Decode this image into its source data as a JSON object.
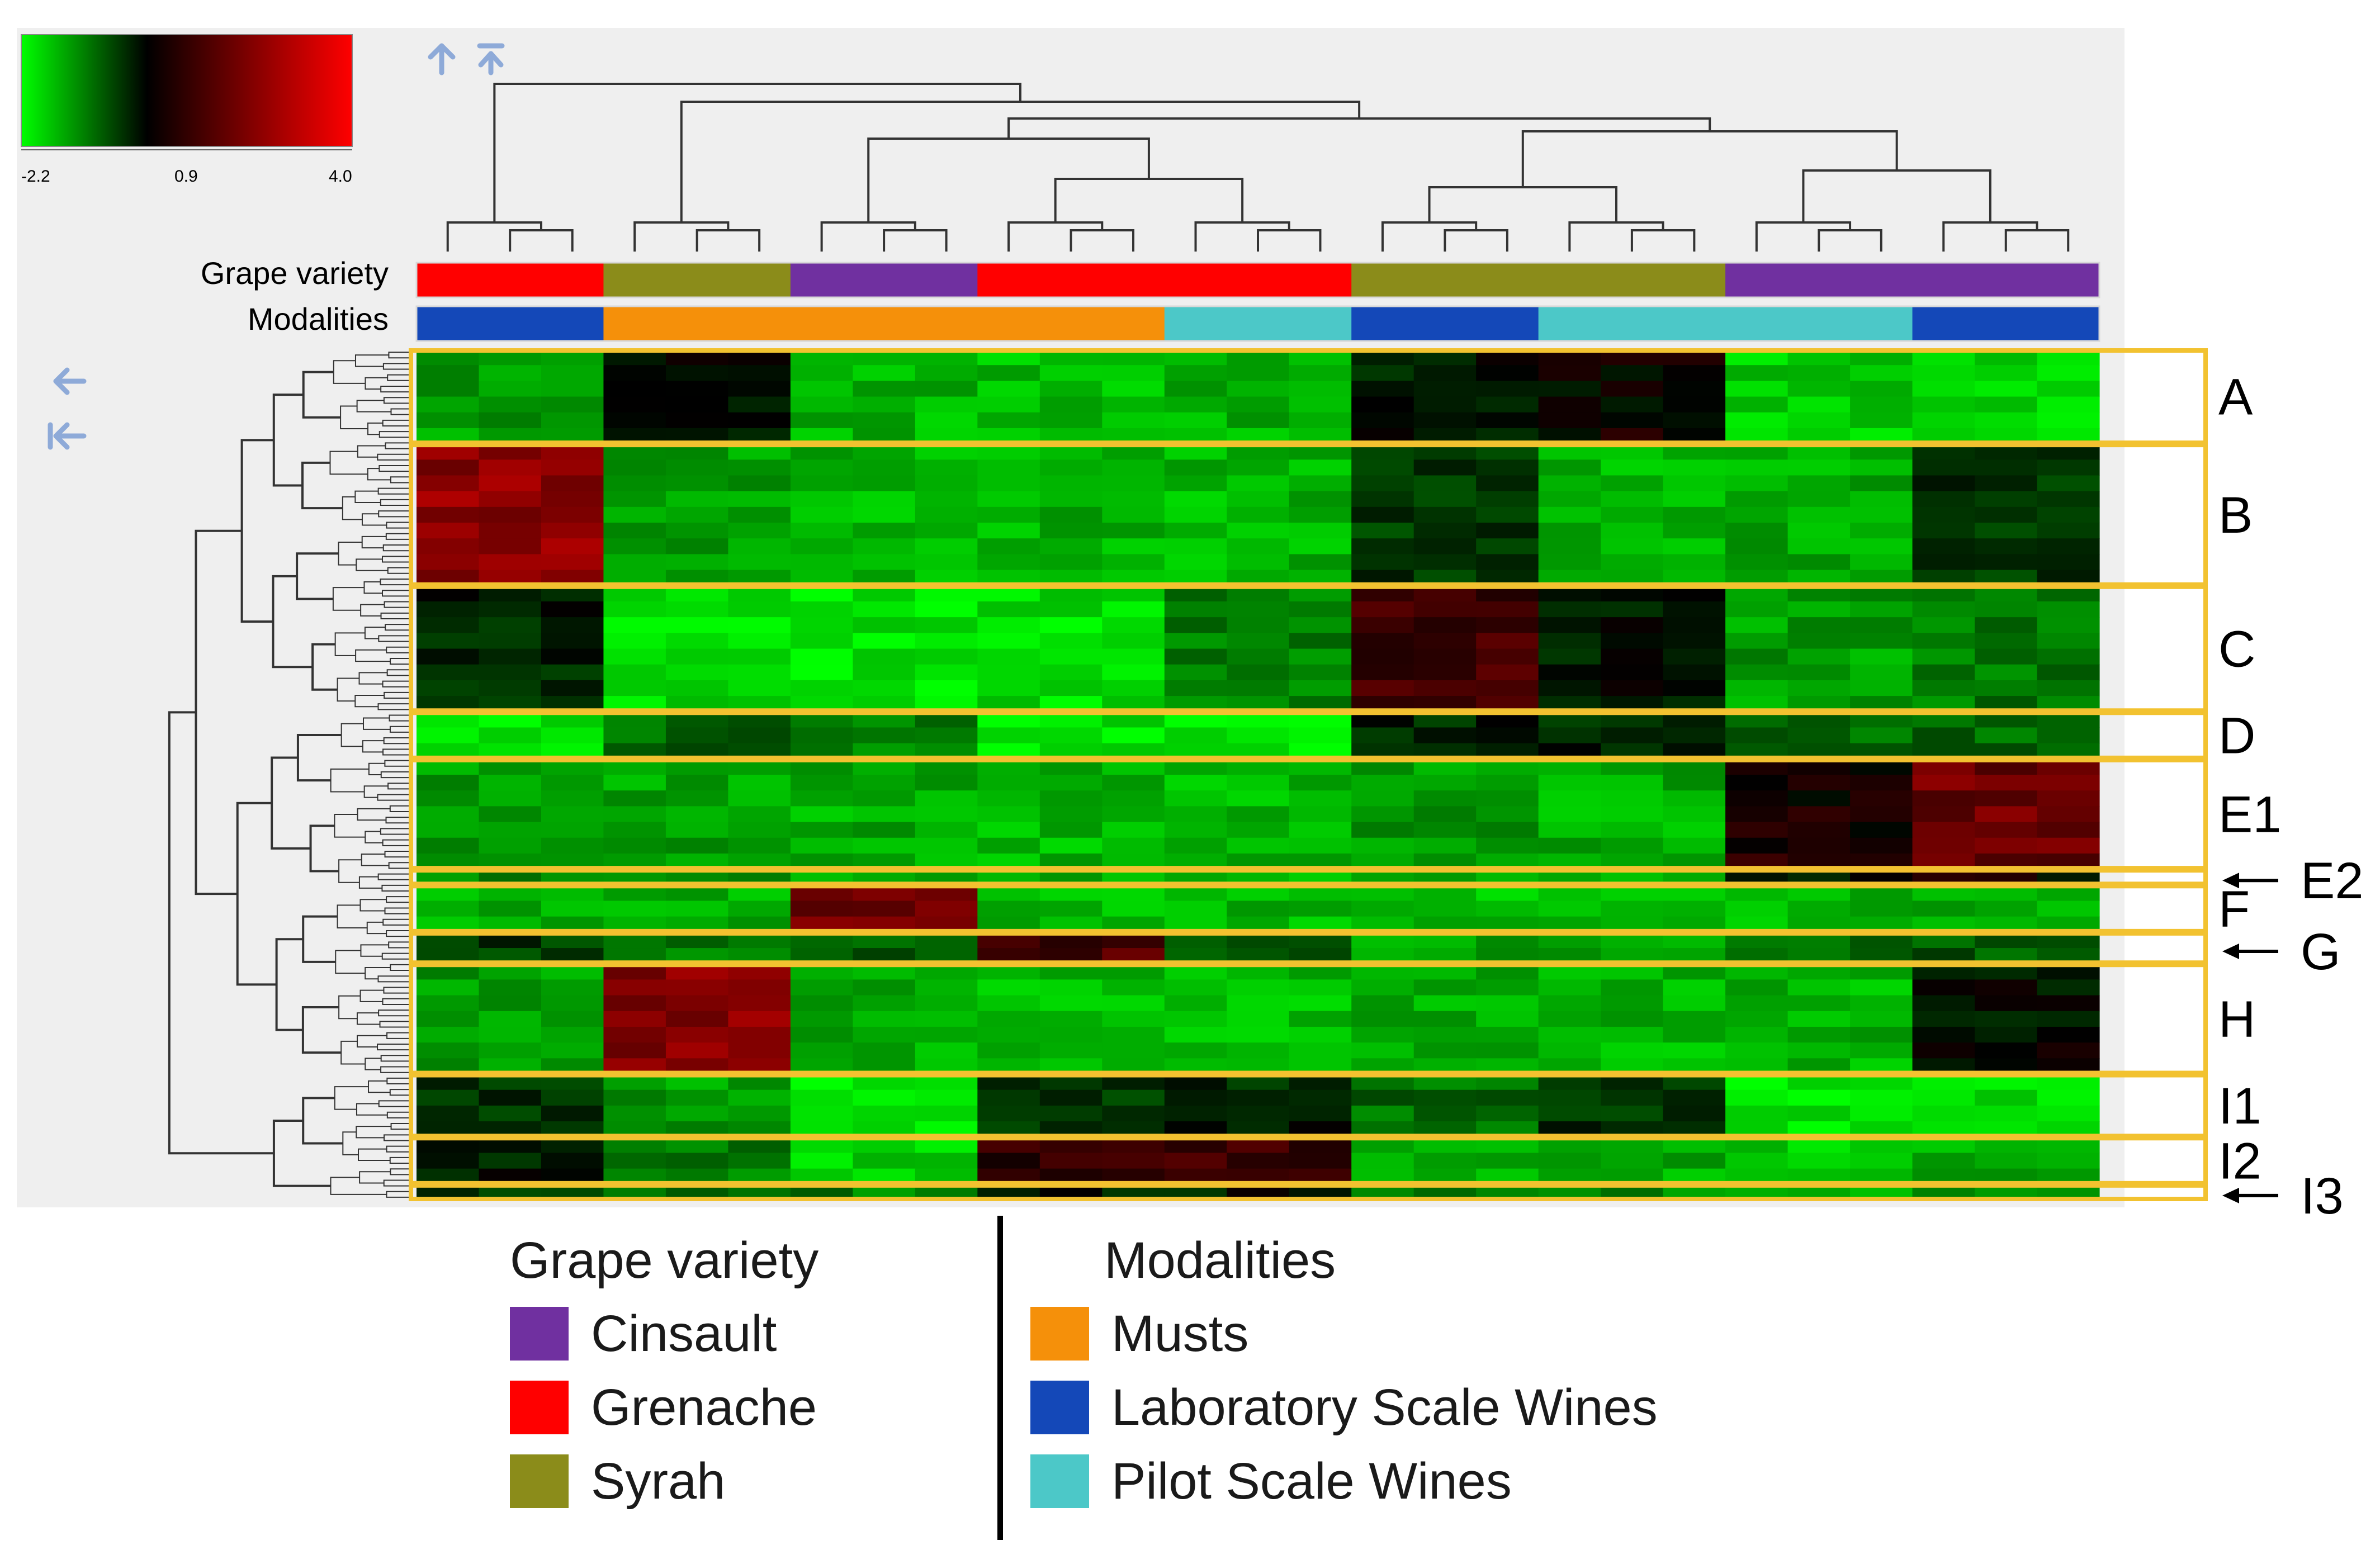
{
  "chart_data": {
    "type": "heatmap",
    "color_scale": {
      "min": -2.2,
      "mid": 0.9,
      "max": 4.0,
      "tick_labels": [
        "-2.2",
        "0.9",
        "4.0"
      ],
      "colors": [
        "#00ff00",
        "#000000",
        "#ff0000"
      ]
    },
    "annotation_rows": [
      {
        "name": "Grape variety",
        "segments": [
          {
            "value": "Grenache",
            "count": 3
          },
          {
            "value": "Syrah",
            "count": 3
          },
          {
            "value": "Cinsault",
            "count": 3
          },
          {
            "value": "Grenache",
            "count": 6
          },
          {
            "value": "Syrah",
            "count": 6
          },
          {
            "value": "Cinsault",
            "count": 6
          }
        ]
      },
      {
        "name": "Modalities",
        "segments": [
          {
            "value": "Laboratory Scale Wines",
            "count": 3
          },
          {
            "value": "Musts",
            "count": 9
          },
          {
            "value": "Pilot Scale Wines",
            "count": 3
          },
          {
            "value": "Laboratory Scale Wines",
            "count": 3
          },
          {
            "value": "Pilot Scale Wines",
            "count": 6
          },
          {
            "value": "Laboratory Scale Wines",
            "count": 3
          }
        ]
      }
    ],
    "column_groups": [
      {
        "variety": "Grenache",
        "modality": "Laboratory Scale Wines",
        "replicates": 3
      },
      {
        "variety": "Syrah",
        "modality": "Musts",
        "replicates": 3
      },
      {
        "variety": "Cinsault",
        "modality": "Musts",
        "replicates": 3
      },
      {
        "variety": "Grenache",
        "modality": "Musts",
        "replicates": 3
      },
      {
        "variety": "Grenache",
        "modality": "Pilot Scale Wines",
        "replicates": 3
      },
      {
        "variety": "Syrah",
        "modality": "Laboratory Scale Wines",
        "replicates": 3
      },
      {
        "variety": "Syrah",
        "modality": "Pilot Scale Wines",
        "replicates": 3
      },
      {
        "variety": "Cinsault",
        "modality": "Pilot Scale Wines",
        "replicates": 3
      },
      {
        "variety": "Cinsault",
        "modality": "Laboratory Scale Wines",
        "replicates": 3
      }
    ],
    "clusters": [
      {
        "label": "A",
        "rows": 6,
        "values": [
          -1.0,
          0.8,
          -1.3,
          -1.4,
          -1.3,
          0.6,
          1.0,
          -1.6,
          -1.6
        ]
      },
      {
        "label": "B",
        "rows": 9,
        "values": [
          2.6,
          -1.1,
          -1.3,
          -1.3,
          -1.3,
          0.2,
          -1.3,
          -1.2,
          0.3
        ]
      },
      {
        "label": "C",
        "rows": 8,
        "values": [
          0.5,
          -1.8,
          -1.9,
          -1.8,
          -0.6,
          1.6,
          0.6,
          -1.0,
          -0.6
        ]
      },
      {
        "label": "D",
        "rows": 3,
        "values": [
          -1.9,
          -0.3,
          -0.6,
          -1.9,
          -1.9,
          0.5,
          0.5,
          -0.4,
          -0.4
        ]
      },
      {
        "label": "E1",
        "rows": 7,
        "values": [
          -1.0,
          -1.1,
          -1.2,
          -1.3,
          -1.3,
          -1.0,
          -1.2,
          1.2,
          2.2
        ]
      },
      {
        "label": "E2",
        "rows": 1,
        "values": [
          -0.8,
          -1.0,
          -1.1,
          -1.2,
          -1.2,
          -1.0,
          -1.2,
          0.8,
          1.0
        ]
      },
      {
        "label": "F",
        "rows": 3,
        "values": [
          -1.3,
          -1.2,
          2.2,
          -1.3,
          -1.3,
          -1.4,
          -1.4,
          -1.3,
          -1.2
        ]
      },
      {
        "label": "G",
        "rows": 2,
        "values": [
          0.2,
          -0.5,
          -0.2,
          1.8,
          -0.3,
          -1.0,
          -1.0,
          -0.2,
          -0.2
        ]
      },
      {
        "label": "H",
        "rows": 7,
        "values": [
          -1.0,
          2.5,
          -1.2,
          -1.3,
          -1.4,
          -1.2,
          -1.3,
          -1.3,
          0.8
        ]
      },
      {
        "label": "I1",
        "rows": 4,
        "values": [
          0.3,
          -1.0,
          -2.0,
          0.2,
          0.5,
          -0.4,
          0.3,
          -1.9,
          -1.7
        ]
      },
      {
        "label": "I2",
        "rows": 3,
        "values": [
          0.6,
          -0.6,
          -1.6,
          1.5,
          1.5,
          -1.2,
          -1.2,
          -1.6,
          -1.2
        ]
      },
      {
        "label": "I3",
        "rows": 1,
        "values": [
          0.4,
          -0.5,
          -0.6,
          0.6,
          0.6,
          -0.8,
          -0.8,
          -1.3,
          -1.0
        ]
      }
    ],
    "callout_labels": [
      "E2",
      "G",
      "I3"
    ]
  },
  "labels": {
    "grape_variety": "Grape variety",
    "modalities": "Modalities"
  },
  "legend": {
    "grape": {
      "title": "Grape variety",
      "items": [
        {
          "label": "Cinsault",
          "color": "#7030a0"
        },
        {
          "label": "Grenache",
          "color": "#ff0000"
        },
        {
          "label": "Syrah",
          "color": "#8b8c1a"
        }
      ]
    },
    "modality": {
      "title": "Modalities",
      "items": [
        {
          "label": "Musts",
          "color": "#f5900a"
        },
        {
          "label": "Laboratory Scale Wines",
          "color": "#1448b8"
        },
        {
          "label": "Pilot Scale Wines",
          "color": "#4cc8c8"
        }
      ]
    }
  },
  "category_colors": {
    "Grenache": "#ff0000",
    "Syrah": "#8b8c1a",
    "Cinsault": "#7030a0",
    "Musts": "#f5900a",
    "Laboratory Scale Wines": "#1448b8",
    "Pilot Scale Wines": "#4cc8c8"
  },
  "colors": {
    "panel_bg": "#efefef",
    "cluster_box": "#f2c230",
    "dendro": "#333333",
    "nav_arrow": "#8eaad8"
  }
}
